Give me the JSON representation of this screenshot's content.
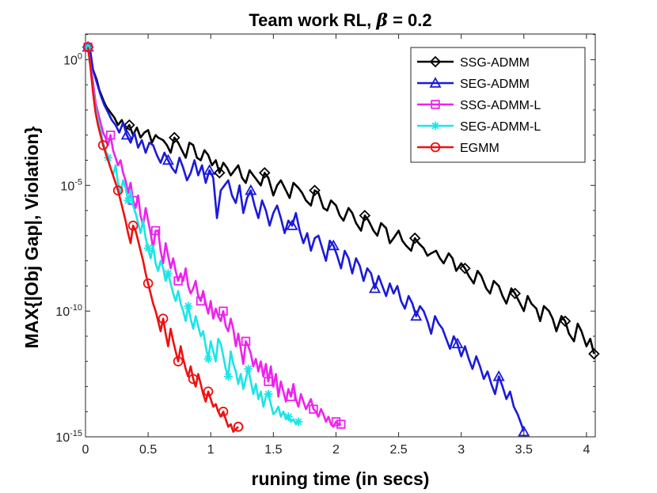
{
  "chart_data": {
    "type": "line",
    "title": "Team work RL, β = 0.2",
    "title_prefix": "Team work RL, ",
    "title_beta": "β",
    "title_suffix": " = 0.2",
    "xlabel": "runing time (in secs)",
    "ylabel": "MAX{|Obj Gap|, Violation}",
    "x_scale": "linear",
    "y_scale": "log",
    "xlim": [
      0,
      4.07
    ],
    "ylim_log10": [
      -15,
      1.02
    ],
    "x_ticks": [
      0,
      0.5,
      1,
      1.5,
      2,
      2.5,
      3,
      3.5,
      4
    ],
    "x_tick_labels": [
      "0",
      "0.5",
      "1",
      "1.5",
      "2",
      "2.5",
      "3",
      "3.5",
      "4"
    ],
    "y_ticks_log10": [
      0,
      -5,
      -10,
      -15
    ],
    "y_tick_base": "10",
    "y_tick_exponents": [
      "0",
      "-5",
      "-10",
      "-15"
    ],
    "legend_position": "top-right",
    "series": [
      {
        "name": "SSG-ADMM",
        "color": "#000000",
        "marker": "diamond",
        "x": [
          0.02,
          0.04,
          0.06,
          0.09,
          0.11,
          0.15,
          0.17,
          0.2,
          0.23,
          0.26,
          0.29,
          0.32,
          0.35,
          0.38,
          0.41,
          0.44,
          0.47,
          0.5,
          0.53,
          0.56,
          0.58,
          0.62,
          0.65,
          0.68,
          0.71,
          0.74,
          0.77,
          0.8,
          0.83,
          0.86,
          0.89,
          0.92,
          0.95,
          0.98,
          1.01,
          1.04,
          1.07,
          1.1,
          1.13,
          1.16,
          1.19,
          1.22,
          1.25,
          1.28,
          1.31,
          1.34,
          1.37,
          1.4,
          1.43,
          1.46,
          1.5,
          1.53,
          1.56,
          1.6,
          1.63,
          1.66,
          1.7,
          1.73,
          1.76,
          1.8,
          1.83,
          1.86,
          1.9,
          1.93,
          1.96,
          2.0,
          2.03,
          2.06,
          2.1,
          2.13,
          2.16,
          2.2,
          2.23,
          2.26,
          2.3,
          2.33,
          2.36,
          2.4,
          2.43,
          2.46,
          2.5,
          2.53,
          2.56,
          2.6,
          2.63,
          2.66,
          2.7,
          2.73,
          2.76,
          2.8,
          2.83,
          2.86,
          2.9,
          2.93,
          2.96,
          3.0,
          3.03,
          3.06,
          3.1,
          3.13,
          3.16,
          3.2,
          3.23,
          3.26,
          3.3,
          3.33,
          3.36,
          3.4,
          3.43,
          3.46,
          3.5,
          3.53,
          3.56,
          3.6,
          3.63,
          3.66,
          3.7,
          3.73,
          3.76,
          3.8,
          3.83,
          3.86,
          3.9,
          3.93,
          3.96,
          4.0,
          4.03,
          4.06
        ],
        "log10_y": [
          0.5,
          0.2,
          -0.4,
          -0.8,
          -1.2,
          -1.7,
          -1.9,
          -2.1,
          -2.3,
          -2.6,
          -2.4,
          -2.8,
          -2.6,
          -3.0,
          -2.7,
          -3.1,
          -2.9,
          -2.8,
          -3.3,
          -3.0,
          -3.1,
          -3.2,
          -3.4,
          -3.7,
          -3.1,
          -3.3,
          -3.6,
          -3.9,
          -3.3,
          -3.4,
          -3.9,
          -4.0,
          -3.6,
          -3.8,
          -4.2,
          -4.0,
          -4.5,
          -4.1,
          -4.3,
          -4.6,
          -4.4,
          -4.2,
          -4.7,
          -4.9,
          -4.4,
          -4.6,
          -4.8,
          -5.0,
          -4.5,
          -4.7,
          -5.4,
          -5.0,
          -4.8,
          -5.2,
          -5.5,
          -4.9,
          -5.1,
          -5.3,
          -5.6,
          -5.8,
          -5.2,
          -5.3,
          -5.9,
          -6.0,
          -5.6,
          -5.8,
          -6.2,
          -6.4,
          -5.9,
          -6.1,
          -6.5,
          -6.8,
          -6.2,
          -6.4,
          -6.8,
          -7.0,
          -6.5,
          -6.7,
          -7.3,
          -7.1,
          -6.8,
          -7.2,
          -7.4,
          -7.6,
          -7.1,
          -7.3,
          -7.5,
          -7.8,
          -7.7,
          -7.6,
          -7.9,
          -8.1,
          -7.7,
          -7.9,
          -8.4,
          -8.1,
          -8.3,
          -8.6,
          -8.9,
          -8.4,
          -8.6,
          -9.1,
          -9.3,
          -8.8,
          -9.0,
          -9.4,
          -9.7,
          -9.1,
          -9.3,
          -9.6,
          -10.0,
          -9.4,
          -9.7,
          -9.9,
          -10.4,
          -9.8,
          -10.0,
          -10.3,
          -10.8,
          -10.2,
          -10.4,
          -10.9,
          -11.2,
          -10.5,
          -10.8,
          -11.4,
          -11.1,
          -11.7
        ]
      },
      {
        "name": "SEG-ADMM",
        "color": "#1a1adb",
        "marker": "triangle",
        "x": [
          0.02,
          0.04,
          0.06,
          0.09,
          0.12,
          0.15,
          0.18,
          0.21,
          0.24,
          0.27,
          0.3,
          0.33,
          0.36,
          0.39,
          0.42,
          0.45,
          0.48,
          0.51,
          0.54,
          0.57,
          0.6,
          0.63,
          0.66,
          0.69,
          0.72,
          0.75,
          0.78,
          0.81,
          0.84,
          0.87,
          0.9,
          0.93,
          0.96,
          0.99,
          1.02,
          1.05,
          1.08,
          1.11,
          1.14,
          1.17,
          1.2,
          1.23,
          1.26,
          1.29,
          1.32,
          1.35,
          1.38,
          1.41,
          1.44,
          1.47,
          1.5,
          1.53,
          1.56,
          1.59,
          1.62,
          1.65,
          1.68,
          1.71,
          1.74,
          1.77,
          1.8,
          1.83,
          1.86,
          1.89,
          1.92,
          1.95,
          1.98,
          2.01,
          2.04,
          2.07,
          2.1,
          2.13,
          2.16,
          2.19,
          2.22,
          2.25,
          2.28,
          2.31,
          2.34,
          2.37,
          2.4,
          2.43,
          2.46,
          2.49,
          2.52,
          2.55,
          2.58,
          2.61,
          2.64,
          2.67,
          2.7,
          2.73,
          2.76,
          2.79,
          2.82,
          2.85,
          2.88,
          2.91,
          2.94,
          2.97,
          3.0,
          3.03,
          3.06,
          3.09,
          3.12,
          3.15,
          3.18,
          3.21,
          3.24,
          3.27,
          3.3,
          3.33,
          3.36,
          3.39,
          3.42,
          3.45,
          3.48,
          3.5
        ],
        "log10_y": [
          0.5,
          0.3,
          -0.4,
          -0.9,
          -1.4,
          -1.8,
          -2.1,
          -2.4,
          -2.6,
          -2.9,
          -2.5,
          -3.0,
          -3.3,
          -2.9,
          -3.5,
          -3.2,
          -3.7,
          -3.3,
          -3.4,
          -3.8,
          -4.1,
          -3.7,
          -4.0,
          -4.3,
          -4.5,
          -3.9,
          -4.3,
          -4.8,
          -4.5,
          -4.0,
          -4.6,
          -4.2,
          -4.9,
          -4.4,
          -4.7,
          -6.3,
          -5.2,
          -5.0,
          -4.8,
          -5.4,
          -5.7,
          -5.0,
          -6.1,
          -5.5,
          -5.2,
          -5.8,
          -6.3,
          -5.6,
          -6.0,
          -6.6,
          -6.1,
          -5.8,
          -6.3,
          -6.9,
          -6.4,
          -6.6,
          -6.1,
          -6.8,
          -7.3,
          -6.9,
          -7.6,
          -7.1,
          -7.0,
          -7.5,
          -8.0,
          -7.2,
          -7.4,
          -7.8,
          -8.3,
          -7.6,
          -7.9,
          -8.5,
          -7.9,
          -8.2,
          -8.8,
          -8.3,
          -8.5,
          -9.1,
          -8.6,
          -9.0,
          -9.4,
          -8.9,
          -9.3,
          -9.0,
          -9.6,
          -9.9,
          -9.4,
          -9.7,
          -10.2,
          -9.8,
          -10.0,
          -10.4,
          -10.9,
          -10.2,
          -10.5,
          -10.7,
          -11.1,
          -11.5,
          -11.0,
          -11.3,
          -11.8,
          -11.4,
          -11.9,
          -12.3,
          -11.8,
          -12.2,
          -12.7,
          -12.4,
          -12.9,
          -13.3,
          -12.6,
          -13.0,
          -13.5,
          -13.2,
          -13.8,
          -14.1,
          -14.5,
          -14.8
        ]
      },
      {
        "name": "SSG-ADMM-L",
        "color": "#ee22ee",
        "marker": "square",
        "x": [
          0.02,
          0.04,
          0.06,
          0.08,
          0.1,
          0.12,
          0.14,
          0.16,
          0.18,
          0.2,
          0.22,
          0.24,
          0.26,
          0.28,
          0.3,
          0.32,
          0.34,
          0.36,
          0.38,
          0.4,
          0.42,
          0.44,
          0.46,
          0.48,
          0.5,
          0.52,
          0.54,
          0.56,
          0.58,
          0.6,
          0.62,
          0.64,
          0.66,
          0.68,
          0.7,
          0.72,
          0.74,
          0.76,
          0.78,
          0.8,
          0.82,
          0.84,
          0.86,
          0.88,
          0.9,
          0.92,
          0.94,
          0.96,
          0.98,
          1.0,
          1.02,
          1.04,
          1.06,
          1.08,
          1.1,
          1.12,
          1.14,
          1.16,
          1.18,
          1.2,
          1.22,
          1.24,
          1.26,
          1.28,
          1.3,
          1.32,
          1.34,
          1.36,
          1.38,
          1.4,
          1.42,
          1.44,
          1.46,
          1.48,
          1.5,
          1.52,
          1.54,
          1.56,
          1.58,
          1.6,
          1.62,
          1.64,
          1.66,
          1.68,
          1.7,
          1.72,
          1.74,
          1.76,
          1.78,
          1.8,
          1.82,
          1.84,
          1.86,
          1.88,
          1.9,
          1.92,
          1.94,
          1.96,
          1.98,
          2.0,
          2.02,
          2.04
        ],
        "log10_y": [
          0.5,
          -0.2,
          -0.9,
          -1.7,
          -2.1,
          -2.5,
          -2.9,
          -3.1,
          -3.4,
          -3.0,
          -3.6,
          -3.9,
          -4.2,
          -4.0,
          -4.5,
          -4.8,
          -5.3,
          -4.9,
          -5.6,
          -5.9,
          -5.4,
          -6.2,
          -6.6,
          -5.9,
          -6.4,
          -6.9,
          -7.5,
          -6.8,
          -6.8,
          -7.6,
          -8.1,
          -7.3,
          -7.8,
          -8.3,
          -7.9,
          -8.4,
          -8.8,
          -8.5,
          -8.8,
          -8.3,
          -9.0,
          -9.3,
          -9.1,
          -8.8,
          -9.4,
          -9.6,
          -9.2,
          -9.7,
          -10.1,
          -9.6,
          -10.3,
          -9.9,
          -10.2,
          -10.4,
          -10.0,
          -10.6,
          -10.8,
          -10.3,
          -10.7,
          -11.4,
          -10.9,
          -11.5,
          -12.1,
          -11.2,
          -11.4,
          -11.7,
          -12.2,
          -11.9,
          -12.4,
          -12.0,
          -12.6,
          -12.1,
          -12.8,
          -12.2,
          -13.0,
          -12.5,
          -13.4,
          -12.8,
          -13.2,
          -13.6,
          -13.1,
          -13.4,
          -12.9,
          -13.5,
          -13.8,
          -13.3,
          -13.6,
          -13.9,
          -13.7,
          -13.5,
          -13.9,
          -14.0,
          -14.2,
          -13.9,
          -14.1,
          -14.4,
          -14.2,
          -14.5,
          -14.6,
          -14.4,
          -14.5,
          -14.5
        ]
      },
      {
        "name": "SEG-ADMM-L",
        "color": "#1de5e5",
        "marker": "asterisk",
        "x": [
          0.02,
          0.04,
          0.06,
          0.08,
          0.1,
          0.12,
          0.14,
          0.16,
          0.18,
          0.2,
          0.22,
          0.24,
          0.26,
          0.28,
          0.3,
          0.32,
          0.34,
          0.36,
          0.38,
          0.4,
          0.42,
          0.44,
          0.46,
          0.48,
          0.5,
          0.52,
          0.54,
          0.56,
          0.58,
          0.6,
          0.62,
          0.64,
          0.66,
          0.68,
          0.7,
          0.72,
          0.74,
          0.76,
          0.78,
          0.8,
          0.82,
          0.84,
          0.86,
          0.88,
          0.9,
          0.92,
          0.94,
          0.96,
          0.98,
          1.0,
          1.02,
          1.04,
          1.06,
          1.08,
          1.1,
          1.12,
          1.14,
          1.16,
          1.18,
          1.2,
          1.22,
          1.24,
          1.26,
          1.28,
          1.3,
          1.32,
          1.34,
          1.36,
          1.38,
          1.4,
          1.42,
          1.44,
          1.46,
          1.48,
          1.5,
          1.52,
          1.54,
          1.56,
          1.58,
          1.6,
          1.62,
          1.64,
          1.66,
          1.68,
          1.7
        ],
        "log10_y": [
          0.5,
          -0.3,
          -1.2,
          -1.9,
          -2.4,
          -2.8,
          -3.3,
          -3.6,
          -3.9,
          -4.3,
          -4.6,
          -4.2,
          -4.9,
          -5.3,
          -4.8,
          -5.1,
          -5.6,
          -5.2,
          -5.8,
          -6.1,
          -6.5,
          -6.9,
          -6.4,
          -7.1,
          -7.5,
          -7.9,
          -7.4,
          -8.1,
          -8.4,
          -8.0,
          -8.3,
          -8.8,
          -8.5,
          -8.9,
          -9.3,
          -9.6,
          -9.2,
          -9.7,
          -10.0,
          -10.4,
          -9.8,
          -10.3,
          -10.7,
          -10.2,
          -10.6,
          -11.0,
          -10.8,
          -11.4,
          -11.9,
          -11.2,
          -11.6,
          -12.0,
          -11.1,
          -11.3,
          -11.8,
          -12.3,
          -12.6,
          -11.6,
          -12.1,
          -12.4,
          -12.9,
          -12.5,
          -13.1,
          -12.7,
          -12.3,
          -12.8,
          -13.3,
          -12.9,
          -13.5,
          -13.2,
          -13.8,
          -13.4,
          -13.3,
          -13.7,
          -14.1,
          -14.0,
          -13.8,
          -14.2,
          -14.0,
          -14.3,
          -14.2,
          -14.4,
          -14.3,
          -14.5,
          -14.4
        ]
      },
      {
        "name": "EGMM",
        "color": "#ee1111",
        "marker": "circle",
        "x": [
          0.02,
          0.04,
          0.06,
          0.08,
          0.1,
          0.12,
          0.14,
          0.16,
          0.18,
          0.2,
          0.22,
          0.24,
          0.26,
          0.28,
          0.3,
          0.32,
          0.34,
          0.36,
          0.38,
          0.4,
          0.42,
          0.44,
          0.46,
          0.48,
          0.5,
          0.52,
          0.54,
          0.56,
          0.58,
          0.6,
          0.62,
          0.64,
          0.66,
          0.68,
          0.7,
          0.72,
          0.74,
          0.76,
          0.78,
          0.8,
          0.82,
          0.84,
          0.86,
          0.88,
          0.9,
          0.92,
          0.94,
          0.96,
          0.98,
          1.0,
          1.02,
          1.04,
          1.06,
          1.08,
          1.1,
          1.12,
          1.14,
          1.16,
          1.18,
          1.2,
          1.22
        ],
        "log10_y": [
          0.5,
          -0.3,
          -1.3,
          -2.1,
          -2.6,
          -3.0,
          -3.4,
          -3.7,
          -4.0,
          -4.3,
          -4.6,
          -4.9,
          -5.2,
          -5.6,
          -6.0,
          -6.4,
          -6.9,
          -7.3,
          -6.6,
          -6.8,
          -7.2,
          -7.6,
          -8.0,
          -8.5,
          -8.9,
          -9.3,
          -9.7,
          -10.0,
          -10.4,
          -10.8,
          -10.3,
          -10.9,
          -11.4,
          -10.7,
          -11.2,
          -11.6,
          -12.0,
          -11.4,
          -11.9,
          -12.3,
          -12.6,
          -12.2,
          -12.7,
          -13.0,
          -12.5,
          -12.9,
          -13.3,
          -13.6,
          -13.2,
          -13.5,
          -13.8,
          -13.7,
          -14.0,
          -14.2,
          -14.0,
          -14.3,
          -14.6,
          -14.5,
          -14.8,
          -14.7,
          -14.6
        ]
      }
    ]
  }
}
